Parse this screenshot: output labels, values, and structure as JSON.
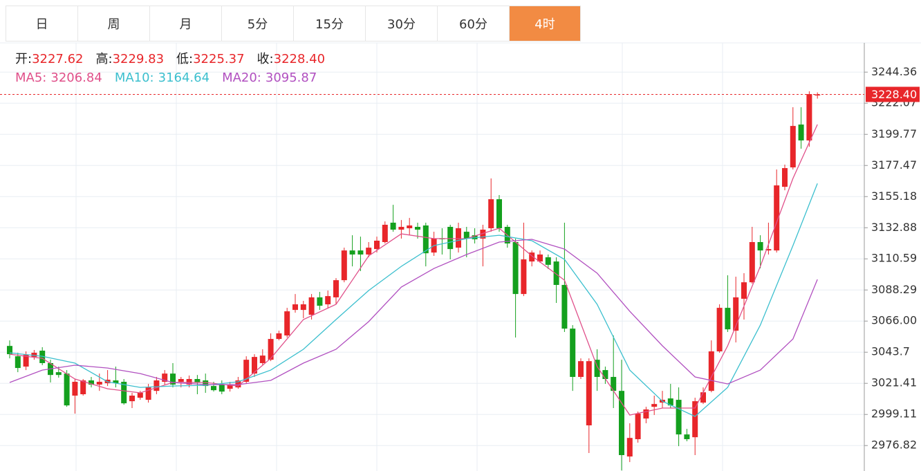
{
  "tabs": [
    "日",
    "周",
    "月",
    "5分",
    "15分",
    "30分",
    "60分",
    "4时"
  ],
  "active_tab": 7,
  "info": [
    {
      "label": "开:",
      "value": "3227.62"
    },
    {
      "label": "高:",
      "value": "3229.83"
    },
    {
      "label": "低:",
      "value": "3225.37"
    },
    {
      "label": "收:",
      "value": "3228.40"
    }
  ],
  "chart_data": {
    "type": "candlestick",
    "up_color": "#e8262a",
    "down_color": "#14a01e",
    "grid": true,
    "ylim": [
      2958.6,
      3265.3
    ],
    "yticks": [
      3244.36,
      3222.07,
      3199.77,
      3177.47,
      3155.18,
      3132.88,
      3110.59,
      3088.29,
      {
        "value": 3066,
        "label": "3066.00"
      },
      3043.7,
      3021.41,
      2999.11,
      2976.82
    ],
    "last_price": {
      "value": 3228.4,
      "label": "3228.40"
    },
    "open": [
      3048.2,
      3040.8,
      3033.4,
      3040.3,
      3044.8,
      3035.9,
      3029.4,
      3028.4,
      3012.6,
      3013.6,
      3023.5,
      3020.5,
      3021.5,
      3023.5,
      3022.5,
      3008.6,
      3011.1,
      3009.6,
      3016.0,
      3022.5,
      3028.4,
      3022.5,
      3020.5,
      3024.5,
      3023.5,
      3019.5,
      3020.5,
      3017.5,
      3018.5,
      3022.5,
      3028.4,
      3035.9,
      3038.3,
      3053.2,
      3055.7,
      3074.0,
      3074.0,
      3070.5,
      3083.0,
      3078.0,
      3083.0,
      3095.3,
      3116.6,
      3116.6,
      3113.7,
      3117.6,
      3122.6,
      3136.5,
      3131.5,
      3132.5,
      3133.5,
      3134.5,
      3115.1,
      3125.1,
      3133.5,
      3118.6,
      3130.0,
      3127.5,
      3125.1,
      3132.5,
      3153.3,
      3133.5,
      3122.6,
      3085.4,
      3108.7,
      3108.7,
      3111.7,
      3108.7,
      3091.9,
      3060.6,
      3026.0,
      2991.3,
      3038.3,
      3030.9,
      3026.0,
      3016.0,
      2969.0,
      2981.4,
      2996.2,
      3004.6,
      3007.6,
      3010.6,
      3009.6,
      2984.8,
      2982.8,
      3007.6,
      3016.0,
      3044.3,
      3075.5,
      3059.1,
      3082.0,
      3093.8,
      3122.6,
      3116.6,
      3116.6,
      3162.2,
      3176.1,
      3206.8,
      3195.4,
      3227.62
    ],
    "high": [
      3052.2,
      3043.3,
      3044.3,
      3045.3,
      3047.3,
      3038.3,
      3033.4,
      3030.9,
      3024.5,
      3024.5,
      3026.0,
      3028.4,
      3030.9,
      3033.4,
      3024.5,
      3014.6,
      3016.0,
      3021.0,
      3026.0,
      3030.9,
      3035.9,
      3026.0,
      3027.0,
      3027.4,
      3028.4,
      3022.5,
      3023.5,
      3022.5,
      3026.0,
      3040.8,
      3042.3,
      3045.8,
      3057.2,
      3059.1,
      3075.5,
      3085.4,
      3080.5,
      3085.4,
      3086.9,
      3087.9,
      3096.8,
      3118.6,
      3127.5,
      3126.5,
      3122.6,
      3126.5,
      3137.4,
      3149.3,
      3138.4,
      3139.9,
      3136.5,
      3136.5,
      3130.0,
      3132.5,
      3135.0,
      3136.5,
      3133.5,
      3132.5,
      3135.0,
      3168.2,
      3156.3,
      3135.0,
      3125.1,
      3136.5,
      3116.6,
      3116.6,
      3113.7,
      3111.7,
      3136.5,
      3063.1,
      3039.3,
      3039.3,
      3045.8,
      3033.4,
      3055.7,
      3038.3,
      2992.8,
      3001.2,
      3004.6,
      3012.6,
      3016.0,
      3021.0,
      3018.5,
      2988.8,
      3011.1,
      3018.5,
      3052.2,
      3078.0,
      3098.8,
      3097.8,
      3100.3,
      3133.5,
      3127.5,
      3136.5,
      3174.6,
      3178.1,
      3219.2,
      3219.2,
      3230.6,
      3229.83
    ],
    "low": [
      3039.3,
      3029.4,
      3030.9,
      3038.3,
      3034.4,
      3022.0,
      3025.5,
      3004.6,
      2999.7,
      3012.6,
      3018.5,
      3016.0,
      3019.5,
      3018.5,
      3006.1,
      3003.7,
      3009.6,
      3007.6,
      3013.6,
      3020.5,
      3018.5,
      3018.5,
      3018.5,
      3013.6,
      3014.6,
      3015.5,
      3013.6,
      3015.5,
      3017.5,
      3021.0,
      3026.0,
      3034.4,
      3037.3,
      3052.2,
      3054.2,
      3072.0,
      3068.1,
      3067.1,
      3074.0,
      3075.5,
      3078.0,
      3093.8,
      3105.2,
      3101.8,
      3111.7,
      3115.1,
      3121.6,
      3130.0,
      3125.1,
      3127.5,
      3125.1,
      3105.2,
      3112.7,
      3113.7,
      3110.2,
      3115.1,
      3111.7,
      3121.6,
      3105.2,
      3130.0,
      3130.0,
      3118.6,
      3054.2,
      3083.9,
      3105.2,
      3107.7,
      3103.3,
      3079.0,
      3058.2,
      3016.0,
      3024.5,
      2971.5,
      3016.0,
      3021.0,
      3003.7,
      2959.0,
      2965.0,
      2978.9,
      2992.8,
      2998.7,
      3003.7,
      3003.7,
      2976.4,
      2979.9,
      2970.0,
      3006.6,
      3015.0,
      3043.3,
      3058.2,
      3050.7,
      3067.1,
      3092.8,
      3103.8,
      3113.7,
      3115.1,
      3159.7,
      3174.6,
      3189.5,
      3190.9,
      3225.37
    ],
    "close": [
      3042.3,
      3032.4,
      3041.8,
      3043.3,
      3035.9,
      3027.4,
      3027.4,
      3005.6,
      3022.5,
      3023.5,
      3020.5,
      3022.5,
      3024.0,
      3021.5,
      3007.1,
      3012.6,
      3014.6,
      3018.5,
      3023.5,
      3028.4,
      3020.5,
      3024.5,
      3024.5,
      3022.0,
      3019.5,
      3016.5,
      3015.5,
      3020.5,
      3023.5,
      3038.3,
      3040.3,
      3041.3,
      3053.2,
      3057.2,
      3073.0,
      3078.0,
      3078.0,
      3083.0,
      3077.0,
      3083.9,
      3095.3,
      3116.6,
      3113.7,
      3113.7,
      3118.6,
      3123.6,
      3135.0,
      3131.5,
      3133.5,
      3134.5,
      3131.5,
      3114.6,
      3125.1,
      3124.6,
      3117.6,
      3132.5,
      3125.1,
      3124.6,
      3131.5,
      3153.3,
      3132.5,
      3121.6,
      3085.4,
      3110.2,
      3115.1,
      3113.7,
      3106.3,
      3091.9,
      3060.6,
      3026.0,
      3037.3,
      3037.3,
      3026.0,
      3024.5,
      3016.0,
      2970.0,
      2982.3,
      2999.7,
      3002.7,
      3006.6,
      3009.6,
      3005.6,
      2984.8,
      2981.4,
      3008.6,
      3015.0,
      3044.3,
      3075.5,
      3060.1,
      3083.0,
      3093.8,
      3122.6,
      3116.6,
      3117.6,
      3163.2,
      3175.6,
      3205.8,
      3195.4,
      3228.6,
      3228.4
    ],
    "ma_x": [
      0,
      4,
      8,
      12,
      16,
      20,
      24,
      28,
      32,
      36,
      40,
      44,
      48,
      52,
      56,
      60,
      64,
      68,
      72,
      76,
      80,
      84,
      88,
      92,
      96,
      99
    ],
    "series": [
      {
        "name": "MA5:",
        "color": "#e0508a",
        "value_label": "3206.84",
        "values": [
          3042.3,
          3039.3,
          3024.5,
          3017.5,
          3014.6,
          3022.0,
          3022.0,
          3019.5,
          3039.3,
          3067.1,
          3078.0,
          3112.7,
          3128.5,
          3125.1,
          3125.1,
          3132.5,
          3112.7,
          3095.3,
          3033.4,
          2998.7,
          3003.7,
          3003.7,
          3048.3,
          3105.2,
          3168.2,
          3206.84
        ]
      },
      {
        "name": "MA10:",
        "color": "#3bbfce",
        "value_label": "3164.64",
        "values": [
          3043.3,
          3040.8,
          3035.9,
          3022.5,
          3018.5,
          3019.5,
          3020.0,
          3022.5,
          3030.9,
          3045.8,
          3067.1,
          3087.9,
          3105.2,
          3120.1,
          3125.1,
          3127.5,
          3123.6,
          3110.2,
          3078.0,
          3030.9,
          3008.6,
          2997.7,
          3018.5,
          3063.1,
          3120.1,
          3164.64
        ]
      },
      {
        "name": "MA20:",
        "color": "#b150c0",
        "value_label": "3095.87",
        "values": [
          3022.0,
          3030.9,
          3034.4,
          3032.4,
          3028.4,
          3022.0,
          3020.5,
          3020.5,
          3023.5,
          3035.9,
          3045.8,
          3065.6,
          3090.4,
          3103.7,
          3113.7,
          3122.6,
          3124.6,
          3117.6,
          3100.3,
          3073.0,
          3048.3,
          3026.0,
          3021.0,
          3030.9,
          3053.2,
          3095.87
        ]
      }
    ]
  }
}
